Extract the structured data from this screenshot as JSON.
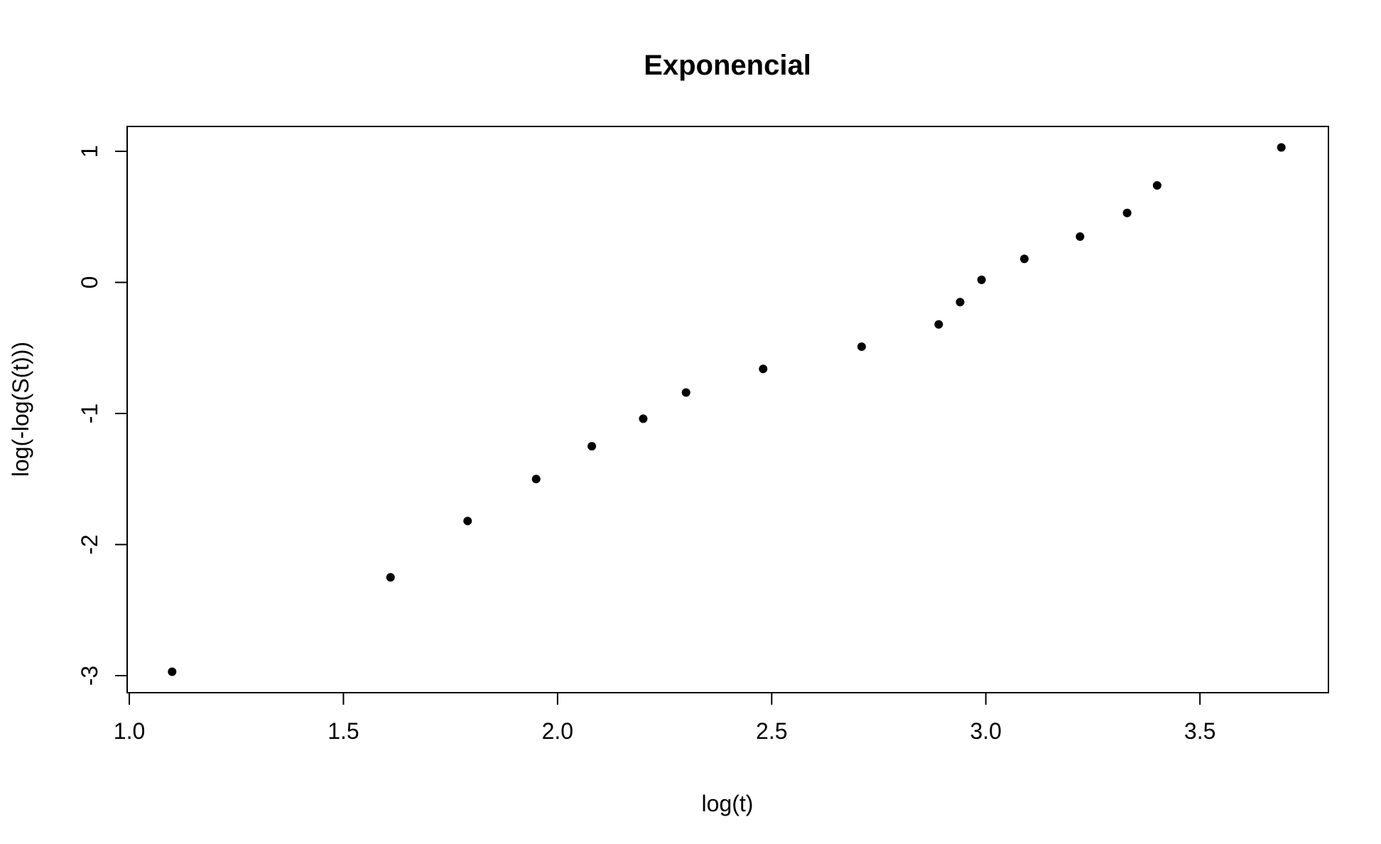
{
  "chart_data": {
    "type": "scatter",
    "title": "Exponencial",
    "xlabel": "log(t)",
    "ylabel": "log(-log(S(t)))",
    "xlim": [
      0.995,
      3.8
    ],
    "ylim": [
      -3.13,
      1.19
    ],
    "x_ticks": [
      {
        "value": 1.0,
        "label": "1.0"
      },
      {
        "value": 1.5,
        "label": "1.5"
      },
      {
        "value": 2.0,
        "label": "2.0"
      },
      {
        "value": 2.5,
        "label": "2.5"
      },
      {
        "value": 3.0,
        "label": "3.0"
      },
      {
        "value": 3.5,
        "label": "3.5"
      }
    ],
    "y_ticks": [
      {
        "value": -3,
        "label": "-3"
      },
      {
        "value": -2,
        "label": "-2"
      },
      {
        "value": -1,
        "label": "-1"
      },
      {
        "value": 0,
        "label": "0"
      },
      {
        "value": 1,
        "label": "1"
      }
    ],
    "grid": false,
    "box": true,
    "point_color": "#000000",
    "points": [
      {
        "x": 1.1,
        "y": -2.97
      },
      {
        "x": 1.61,
        "y": -2.25
      },
      {
        "x": 1.79,
        "y": -1.82
      },
      {
        "x": 1.95,
        "y": -1.5
      },
      {
        "x": 2.08,
        "y": -1.25
      },
      {
        "x": 2.2,
        "y": -1.04
      },
      {
        "x": 2.3,
        "y": -0.84
      },
      {
        "x": 2.48,
        "y": -0.66
      },
      {
        "x": 2.71,
        "y": -0.49
      },
      {
        "x": 2.89,
        "y": -0.32
      },
      {
        "x": 2.94,
        "y": -0.15
      },
      {
        "x": 2.99,
        "y": 0.02
      },
      {
        "x": 3.09,
        "y": 0.18
      },
      {
        "x": 3.22,
        "y": 0.35
      },
      {
        "x": 3.33,
        "y": 0.53
      },
      {
        "x": 3.4,
        "y": 0.74
      },
      {
        "x": 3.69,
        "y": 1.03
      }
    ]
  }
}
